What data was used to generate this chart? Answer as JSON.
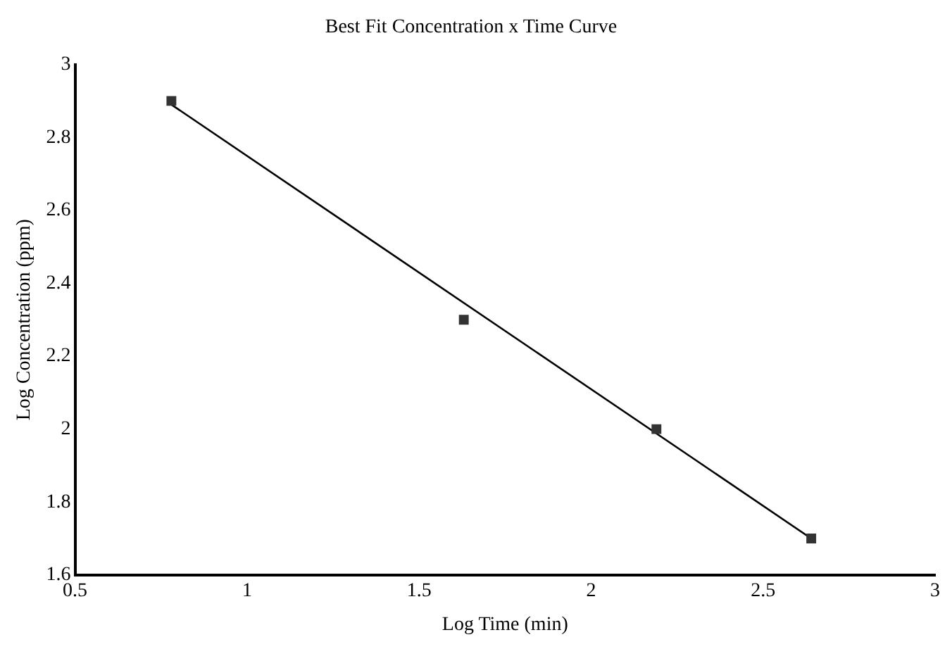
{
  "chart_data": {
    "type": "scatter",
    "title": "Best Fit Concentration x Time Curve",
    "xlabel": "Log Time (min)",
    "ylabel": "Log Concentration (ppm)",
    "xlim": [
      0.5,
      3
    ],
    "xticks": [
      0.5,
      1,
      1.5,
      2,
      2.5,
      3
    ],
    "ylim": [
      1.6,
      3
    ],
    "yticks": [
      1.6,
      1.8,
      2,
      2.2,
      2.4,
      2.6,
      2.8,
      3
    ],
    "grid": false,
    "legend": false,
    "marker": "square",
    "series": [
      {
        "color": "#333333",
        "x": [
          0.78,
          1.63,
          2.19,
          2.64
        ],
        "values": [
          2.9,
          2.3,
          2.0,
          1.7
        ]
      },
      {
        "type": "line",
        "color": "#000000",
        "x": [
          0.78,
          2.64
        ],
        "values": [
          2.89,
          1.7
        ],
        "marker": "none",
        "line_style": "solid"
      }
    ]
  }
}
